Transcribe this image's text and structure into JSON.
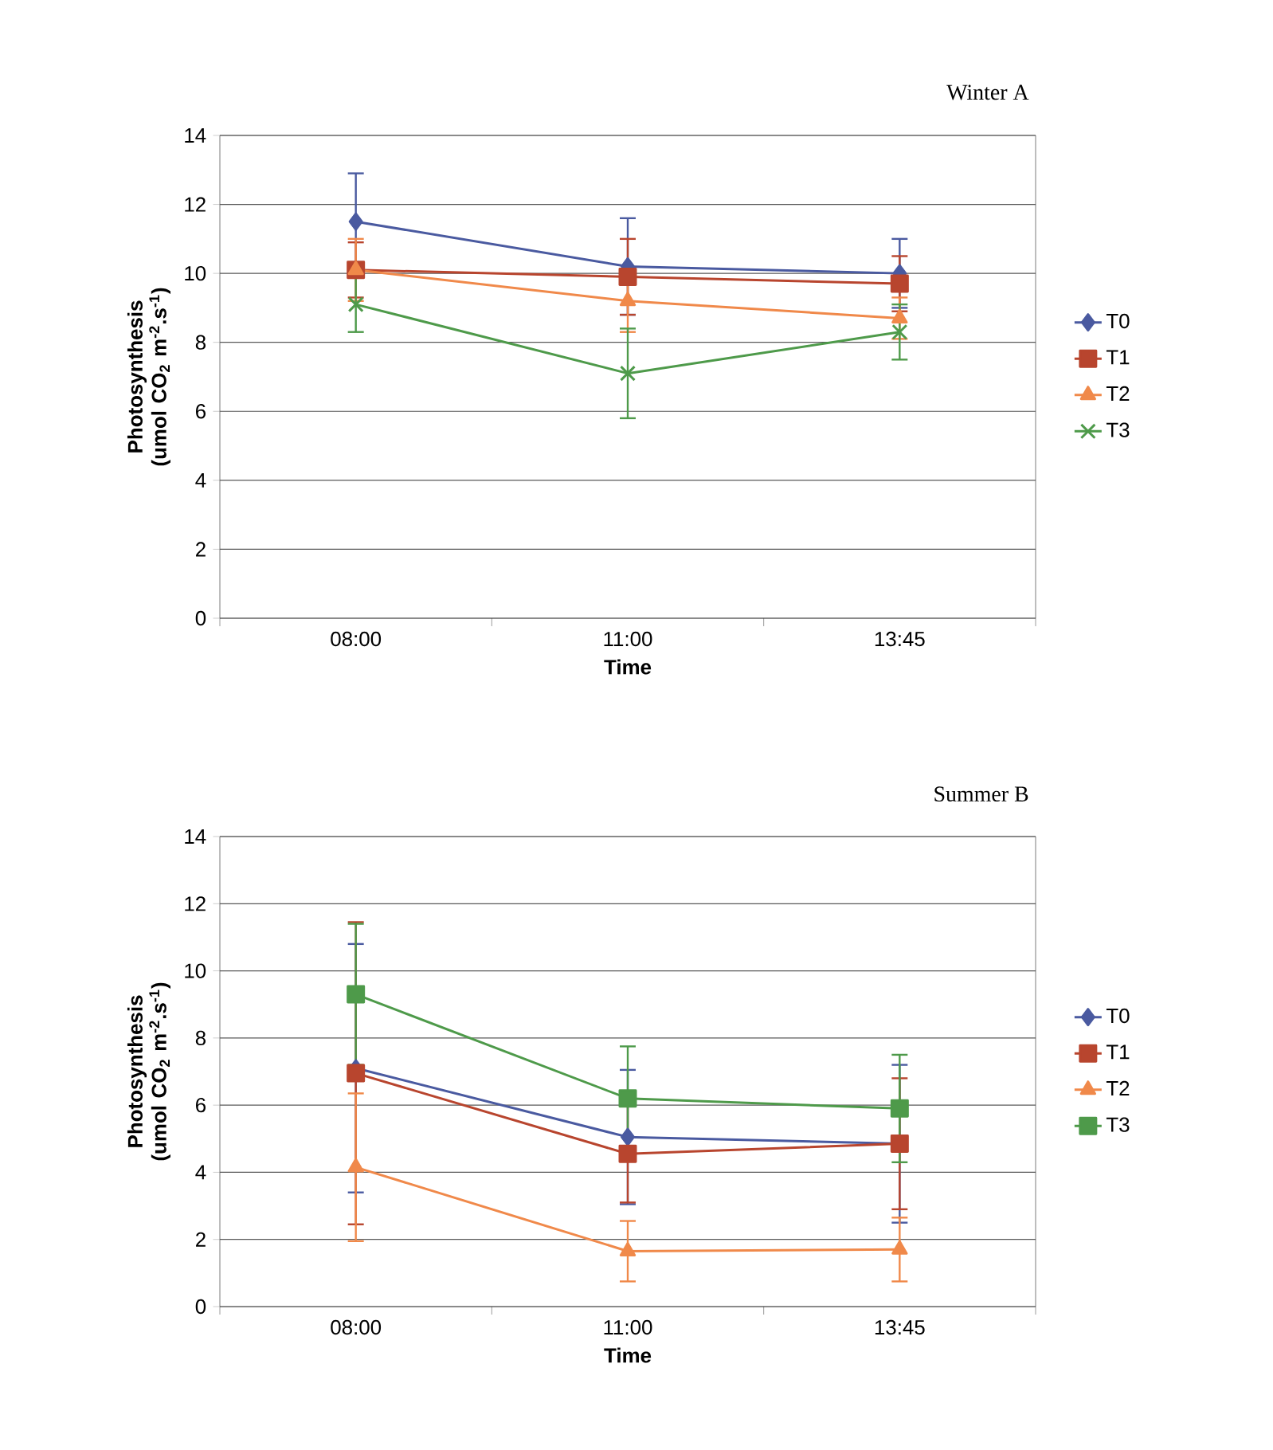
{
  "chart_data": [
    {
      "type": "line",
      "title": "Winter A",
      "xlabel": "Time",
      "ylabel": "Photosynthesis (umol CO$_{2}$ m$^{-2}$.s$^{-1}$)",
      "categories": [
        "08:00",
        "11:00",
        "13:45"
      ],
      "ylim": [
        0,
        14
      ],
      "yticks": [
        0,
        2,
        4,
        6,
        8,
        10,
        12,
        14
      ],
      "grid": "y",
      "legend": "right",
      "series": [
        {
          "name": "T0",
          "color": "#4a5aa0",
          "marker": "diamond",
          "values": [
            11.5,
            10.2,
            10.0
          ],
          "errors": [
            1.4,
            1.4,
            1.0
          ]
        },
        {
          "name": "T1",
          "color": "#b8452e",
          "marker": "square",
          "values": [
            10.1,
            9.9,
            9.7
          ],
          "errors": [
            0.8,
            1.1,
            0.8
          ]
        },
        {
          "name": "T2",
          "color": "#f0894a",
          "marker": "triangle",
          "values": [
            10.1,
            9.2,
            8.7
          ],
          "errors": [
            0.9,
            0.9,
            0.6
          ]
        },
        {
          "name": "T3",
          "color": "#4e9a4a",
          "marker": "cross",
          "values": [
            9.1,
            7.1,
            8.3
          ],
          "errors": [
            0.8,
            1.3,
            0.8
          ]
        }
      ]
    },
    {
      "type": "line",
      "title": "Summer B",
      "xlabel": "Time",
      "ylabel": "Photosynthesis (umol CO$_{2}$ m$^{-2}$.s$^{-1}$)",
      "categories": [
        "08:00",
        "11:00",
        "13:45"
      ],
      "ylim": [
        0,
        14
      ],
      "yticks": [
        0,
        2,
        4,
        6,
        8,
        10,
        12,
        14
      ],
      "grid": "y",
      "legend": "right",
      "series": [
        {
          "name": "T0",
          "color": "#4a5aa0",
          "marker": "diamond",
          "values": [
            7.1,
            5.05,
            4.85
          ],
          "errors": [
            3.7,
            2.0,
            2.35
          ]
        },
        {
          "name": "T1",
          "color": "#b8452e",
          "marker": "square",
          "values": [
            6.95,
            4.55,
            4.85
          ],
          "errors": [
            4.5,
            1.45,
            1.95
          ]
        },
        {
          "name": "T2",
          "color": "#f0894a",
          "marker": "triangle",
          "values": [
            4.15,
            1.65,
            1.7
          ],
          "errors": [
            2.2,
            0.9,
            0.95
          ]
        },
        {
          "name": "T3",
          "color": "#4e9a4a",
          "marker": "square",
          "values": [
            9.3,
            6.2,
            5.9
          ],
          "errors": [
            2.1,
            1.55,
            1.6
          ]
        }
      ]
    }
  ]
}
